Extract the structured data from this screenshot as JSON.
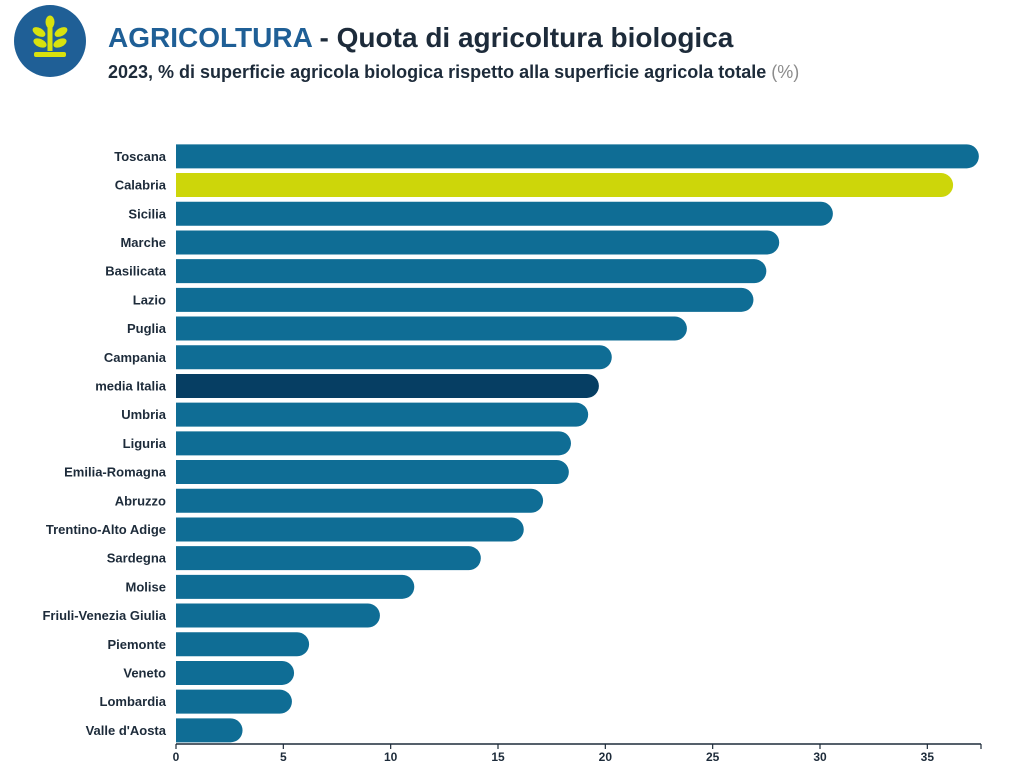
{
  "header": {
    "category": "AGRICOLTURA",
    "separator": "-",
    "title": "Quota di agricoltura biologica",
    "subtitle": "2023, % di superficie agricola biologica rispetto alla superficie agricola totale",
    "unit": "(%)",
    "logo_icon": "sprout-icon"
  },
  "colors": {
    "default": "#0f6d95",
    "highlight": "#cdd60a",
    "average": "#063e63",
    "logo_bg": "#1f5f96",
    "logo_fg": "#d8e20e"
  },
  "chart_data": {
    "type": "bar",
    "orientation": "horizontal",
    "title": "Quota di agricoltura biologica",
    "xlabel": "",
    "ylabel": "",
    "xlim": [
      0,
      37.5
    ],
    "xticks": [
      0,
      5,
      10,
      15,
      20,
      25,
      30,
      35
    ],
    "categories": [
      "Toscana",
      "Calabria",
      "Sicilia",
      "Marche",
      "Basilicata",
      "Lazio",
      "Puglia",
      "Campania",
      "media Italia",
      "Umbria",
      "Liguria",
      "Emilia-Romagna",
      "Abruzzo",
      "Trentino-Alto Adige",
      "Sardegna",
      "Molise",
      "Friuli-Venezia Giulia",
      "Piemonte",
      "Veneto",
      "Lombardia",
      "Valle d'Aosta"
    ],
    "values": [
      37.4,
      36.2,
      30.6,
      28.1,
      27.5,
      26.9,
      23.8,
      20.3,
      19.7,
      19.2,
      18.4,
      18.3,
      17.1,
      16.2,
      14.2,
      11.1,
      9.5,
      6.2,
      5.5,
      5.4,
      3.1
    ],
    "highlight": "Calabria",
    "average": "media Italia"
  }
}
